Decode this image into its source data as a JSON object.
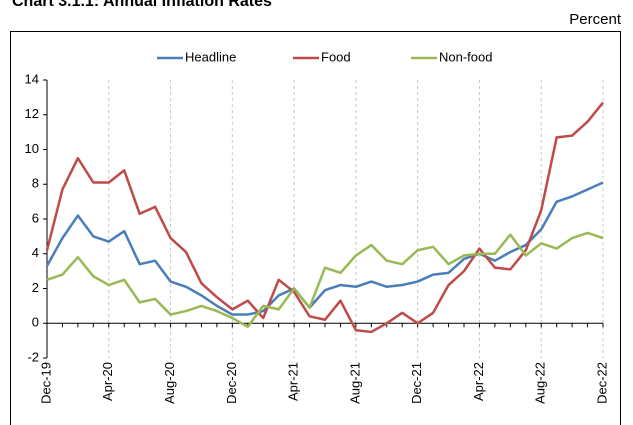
{
  "chart_data": {
    "type": "line",
    "title": "Chart 3.1.1: Annual Inflation Rates",
    "y_label": "Percent",
    "categories": [
      "Dec-19",
      null,
      null,
      null,
      "Apr-20",
      null,
      null,
      null,
      "Aug-20",
      null,
      null,
      null,
      "Dec-20",
      null,
      null,
      null,
      "Apr-21",
      null,
      null,
      null,
      "Aug-21",
      null,
      null,
      null,
      "Dec-21",
      null,
      null,
      null,
      "Apr-22",
      null,
      null,
      null,
      "Aug-22",
      null,
      null,
      null,
      "Dec-22"
    ],
    "series": [
      {
        "name": "Headline",
        "color": "#4a7ebb",
        "values": [
          3.3,
          4.9,
          6.2,
          5.0,
          4.7,
          5.3,
          3.4,
          3.6,
          2.4,
          2.1,
          1.6,
          1.0,
          0.5,
          0.5,
          0.7,
          1.6,
          2.0,
          0.9,
          1.9,
          2.2,
          2.1,
          2.4,
          2.1,
          2.2,
          2.4,
          2.8,
          2.9,
          3.7,
          4.0,
          3.6,
          4.1,
          4.5,
          5.4,
          7.0,
          7.3,
          7.7,
          8.1
        ]
      },
      {
        "name": "Food",
        "color": "#be4b48",
        "values": [
          4.2,
          7.7,
          9.5,
          8.1,
          8.1,
          8.8,
          6.3,
          6.7,
          4.9,
          4.1,
          2.3,
          1.5,
          0.8,
          1.3,
          0.3,
          2.5,
          1.8,
          0.4,
          0.2,
          1.3,
          -0.4,
          -0.5,
          0.0,
          0.6,
          0.0,
          0.6,
          2.2,
          3.0,
          4.3,
          3.2,
          3.1,
          4.2,
          6.5,
          10.7,
          10.8,
          11.6,
          12.7
        ]
      },
      {
        "name": "Non-food",
        "color": "#98b954",
        "values": [
          2.5,
          2.8,
          3.8,
          2.7,
          2.2,
          2.5,
          1.2,
          1.4,
          0.5,
          0.7,
          1.0,
          0.7,
          0.3,
          -0.2,
          1.0,
          0.8,
          2.0,
          0.9,
          3.2,
          2.9,
          3.9,
          4.5,
          3.6,
          3.4,
          4.2,
          4.4,
          3.4,
          3.9,
          4.0,
          4.0,
          5.1,
          3.9,
          4.6,
          4.3,
          4.9,
          5.2,
          4.9
        ]
      }
    ],
    "ylim": [
      -2,
      14
    ],
    "yticks": [
      -2,
      0,
      2,
      4,
      6,
      8,
      10,
      12,
      14
    ],
    "legend": "top"
  }
}
